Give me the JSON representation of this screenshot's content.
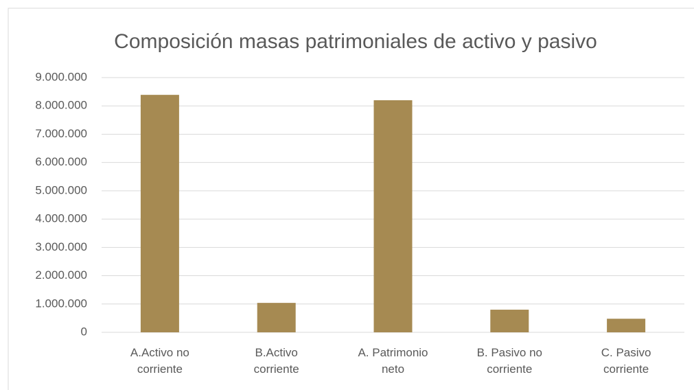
{
  "chart_data": {
    "type": "bar",
    "title": "Composición masas patrimoniales de activo y pasivo",
    "categories": [
      "A.Activo no corriente",
      "B.Activo corriente",
      "A. Patrimonio neto",
      "B. Pasivo no corriente",
      "C. Pasivo corriente"
    ],
    "values": [
      8390000,
      1040000,
      8200000,
      800000,
      480000
    ],
    "color": "#a68a52",
    "ylim": [
      0,
      9000000
    ],
    "yticks": [
      0,
      {
        "value": 1000000,
        "label": "1.000.000"
      },
      {
        "value": 2000000,
        "label": "2.000.000"
      },
      {
        "value": 3000000,
        "label": "3.000.000"
      },
      {
        "value": 4000000,
        "label": "4.000.000"
      },
      {
        "value": 5000000,
        "label": "5.000.000"
      },
      {
        "value": 6000000,
        "label": "6.000.000"
      },
      {
        "value": 7000000,
        "label": "7.000.000"
      },
      {
        "value": 8000000,
        "label": "8.000.000"
      },
      {
        "value": 9000000,
        "label": "9.000.000"
      }
    ],
    "grid": true
  }
}
